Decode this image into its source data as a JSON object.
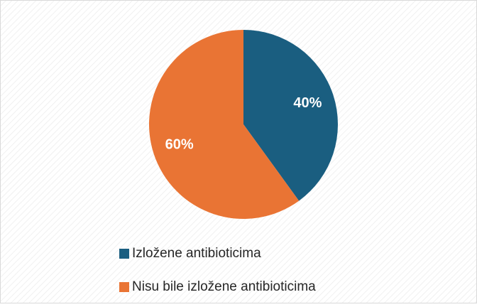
{
  "chart_data": {
    "type": "pie",
    "categories": [
      "Izložene antibioticima",
      "Nisu bile izložene antibioticima"
    ],
    "values": [
      40,
      60
    ],
    "value_labels": [
      "40%",
      "60%"
    ],
    "colors": [
      "#1a5e80",
      "#e97434"
    ],
    "legend": "bottom"
  }
}
